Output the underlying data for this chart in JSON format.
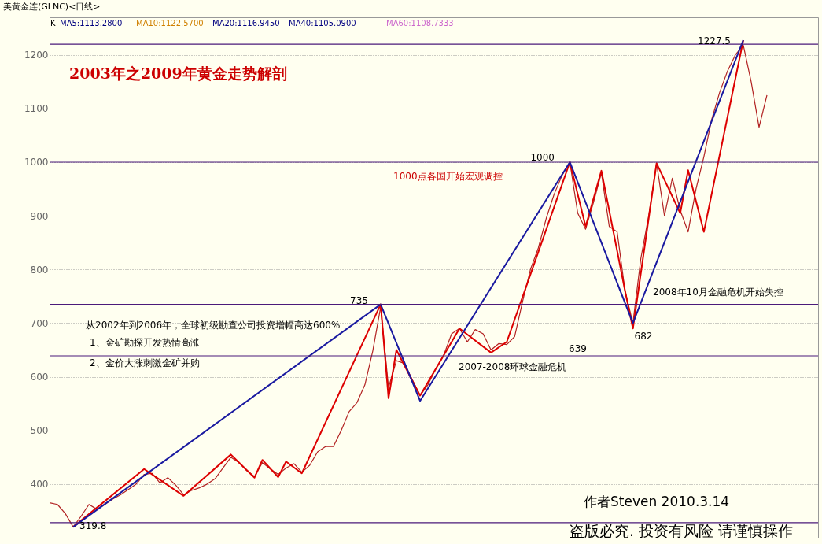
{
  "chart_data": {
    "type": "line",
    "title": "2003年之2009年黄金走势解剖",
    "subtitle": "美黄金连(GLNC)<日线>",
    "categories": [
      null,
      null,
      null,
      null,
      null,
      null,
      null,
      null,
      null,
      null,
      null,
      null,
      null,
      null,
      null,
      null,
      null,
      null,
      null,
      null,
      null,
      null,
      null,
      null,
      null,
      null,
      null,
      null,
      null,
      null,
      null,
      null,
      null,
      null,
      null,
      null,
      null,
      null,
      null,
      null,
      null,
      null,
      null,
      null,
      null,
      null,
      null,
      null,
      null,
      null,
      null,
      null,
      null,
      null,
      null,
      null,
      null,
      null,
      null,
      null,
      null,
      null,
      null,
      null,
      null,
      null,
      null,
      null,
      null,
      null,
      null,
      null,
      null,
      null,
      null,
      null,
      null,
      null,
      null,
      null,
      null,
      null,
      null,
      null,
      null,
      null,
      null,
      null,
      null,
      null,
      null,
      null
    ],
    "ylim": [
      300,
      1270
    ],
    "yticks": [
      400,
      500,
      600,
      700,
      800,
      900,
      1000,
      1100,
      1200
    ],
    "tick_labels": "y",
    "grid": "y",
    "line_style": "solid",
    "series": [
      {
        "color": "#b22222",
        "values": [
          365,
          362,
          345,
          320,
          340,
          362,
          353,
          362,
          372,
          380,
          390,
          400,
          418,
          420,
          402,
          412,
          398,
          380,
          388,
          393,
          400,
          410,
          430,
          450,
          440,
          425,
          414,
          440,
          428,
          418,
          430,
          438,
          422,
          435,
          460,
          470,
          470,
          500,
          535,
          552,
          585,
          648,
          730,
          580,
          630,
          625,
          595,
          565,
          585,
          615,
          640,
          680,
          690,
          665,
          688,
          680,
          650,
          662,
          660,
          675,
          740,
          800,
          840,
          895,
          940,
          975,
          1000,
          905,
          875,
          925,
          980,
          880,
          870,
          760,
          700,
          820,
          900,
          998,
          900,
          970,
          910,
          870,
          950,
          1010,
          1080,
          1130,
          1170,
          1200,
          1218,
          1150,
          1065,
          1125
        ]
      },
      {
        "color": "#dd0000",
        "values": [
          null,
          null,
          null,
          320,
          null,
          null,
          null,
          null,
          null,
          null,
          null,
          null,
          428,
          null,
          null,
          null,
          null,
          378,
          null,
          null,
          null,
          null,
          null,
          455,
          null,
          null,
          412,
          445,
          null,
          413,
          442,
          null,
          420,
          null,
          null,
          null,
          null,
          null,
          null,
          null,
          null,
          null,
          735,
          560,
          650,
          null,
          null,
          565,
          null,
          null,
          null,
          null,
          690,
          null,
          null,
          null,
          645,
          null,
          665,
          null,
          null,
          null,
          null,
          null,
          null,
          null,
          1000,
          null,
          880,
          null,
          984,
          null,
          null,
          760,
          690,
          null,
          null,
          998,
          null,
          null,
          905,
          985,
          null,
          870,
          null,
          null,
          null,
          null,
          1227.5,
          null,
          null,
          null
        ]
      },
      {
        "color": "#1a1aa0",
        "values": [
          null,
          null,
          null,
          320,
          null,
          null,
          null,
          null,
          null,
          null,
          null,
          null,
          null,
          null,
          null,
          null,
          null,
          null,
          null,
          null,
          null,
          null,
          null,
          null,
          null,
          null,
          null,
          null,
          null,
          null,
          null,
          null,
          null,
          null,
          null,
          null,
          null,
          null,
          null,
          null,
          null,
          null,
          735,
          null,
          null,
          null,
          null,
          555,
          null,
          null,
          null,
          null,
          null,
          null,
          null,
          null,
          null,
          null,
          null,
          null,
          null,
          null,
          null,
          null,
          null,
          null,
          1000,
          null,
          null,
          null,
          null,
          null,
          null,
          null,
          700,
          null,
          null,
          null,
          null,
          null,
          null,
          null,
          null,
          null,
          null,
          null,
          null,
          null,
          1227.5,
          null,
          null,
          null
        ]
      }
    ],
    "ref_lines": [
      {
        "axis": "y",
        "value": 1220,
        "color": "#4b1a7a"
      },
      {
        "axis": "y",
        "value": 1000,
        "color": "#4b1a7a"
      },
      {
        "axis": "y",
        "value": 735,
        "color": "#4b1a7a"
      },
      {
        "axis": "y",
        "value": 639,
        "color": "#4b1a7a"
      },
      {
        "axis": "y",
        "value": 328,
        "color": "#4b1a7a"
      }
    ],
    "annotations": [
      "K",
      "MA5:1113.2800",
      "MA10:1122.5700",
      "MA20:1116.9450",
      "MA40:1105.0900",
      "MA60:1108.7333",
      "1000点各国开始宏观调控",
      "从2002年到2006年，全球初级勘查公司投资增幅高达600%",
      "1、金矿勘探开发热情高涨",
      "2、金价大涨刺激金矿并购",
      "2007-2008环球金融危机",
      "2008年10月金融危机开始失控",
      "作者Steven 2010.3.14",
      "盗版必究. 投资有风险 请谨慎操作",
      "1227.5",
      "1000",
      "735",
      "639",
      "319.8",
      "682"
    ]
  }
}
